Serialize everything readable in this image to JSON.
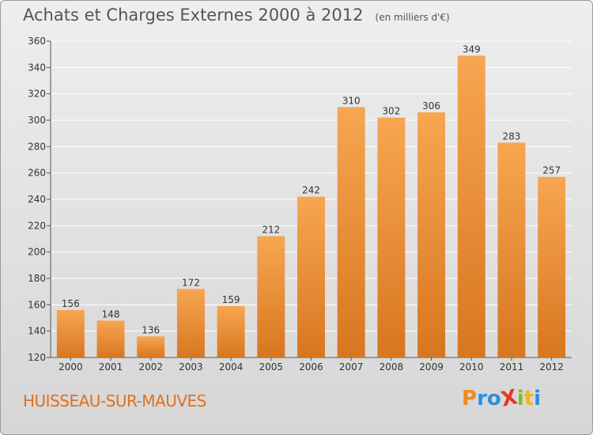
{
  "header": {
    "title": "Achats et Charges Externes 2000 à 2012",
    "subtitle": "(en milliers d'€)"
  },
  "footer": {
    "commune": "HUISSEAU-SUR-MAUVES",
    "logo": {
      "text": "ProXiti",
      "letters": [
        "P",
        "r",
        "o",
        "X",
        "i",
        "t",
        "i"
      ],
      "colors": [
        "#f08a1c",
        "#2e8fd8",
        "#2e8fd8",
        "#e23a2a",
        "#7cbf2a",
        "#f0b51c",
        "#2e8fd8"
      ]
    }
  },
  "colors": {
    "bar_light": "#f7a651",
    "bar_dark": "#d87620",
    "accent_text": "#e07020"
  },
  "chart_data": {
    "type": "bar",
    "title": "Achats et Charges Externes 2000 à 2012",
    "subtitle": "(en milliers d'€)",
    "categories": [
      "2000",
      "2001",
      "2002",
      "2003",
      "2004",
      "2005",
      "2006",
      "2007",
      "2008",
      "2009",
      "2010",
      "2011",
      "2012"
    ],
    "values": [
      156,
      148,
      136,
      172,
      159,
      212,
      242,
      310,
      302,
      306,
      349,
      283,
      257
    ],
    "ylim": [
      120,
      360
    ],
    "yticks": [
      120,
      140,
      160,
      180,
      200,
      220,
      240,
      260,
      280,
      300,
      320,
      340,
      360
    ],
    "grid": true,
    "legend": "none"
  }
}
